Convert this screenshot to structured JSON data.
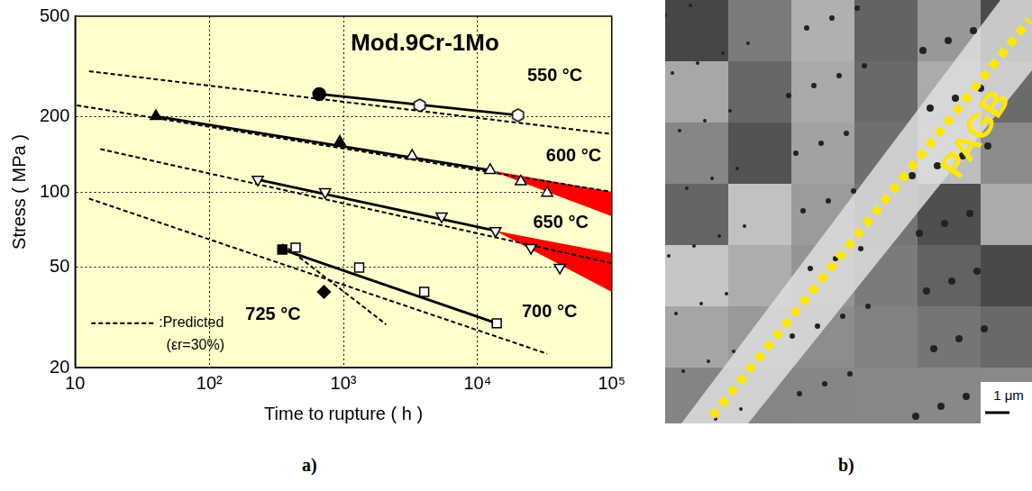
{
  "chart_data": {
    "type": "scatter",
    "title": "Mod.9Cr-1Mo",
    "x_label": "Time to rupture ( h )",
    "y_label": "Stress ( MPa )",
    "log": true,
    "grid": true,
    "legend": "lower left",
    "xlim": [
      10,
      100000
    ],
    "xticks": [
      10,
      {
        "value": 100,
        "label": "10²"
      },
      {
        "value": 1000,
        "label": "10³"
      },
      {
        "value": 10000,
        "label": "10⁴"
      },
      {
        "value": 100000,
        "label": "10⁵"
      }
    ],
    "ylim": [
      20,
      500
    ],
    "yticks": [
      20,
      50,
      100,
      200,
      500
    ],
    "annotations": [
      "550 °C",
      "600 °C",
      "650 °C",
      "700 °C",
      "725 °C"
    ],
    "predicted_label": [
      ":Predicted",
      "(εr=30%)"
    ],
    "series": [
      {
        "type": "line",
        "line_style": "dashed",
        "color": "#000000",
        "x": [
          12.7,
          100000
        ],
        "values": [
          302,
          170
        ]
      },
      {
        "type": "line",
        "line_style": "solid",
        "color": "#000000",
        "x": [
          660,
          20000
        ],
        "values": [
          245,
          202
        ]
      },
      {
        "type": "scatter",
        "marker": "filled_circle",
        "color": "#000000",
        "x": [
          660
        ],
        "values": [
          245
        ]
      },
      {
        "type": "scatter",
        "marker": "open_hexagon",
        "color": "#000000",
        "x": [
          3700,
          20000
        ],
        "values": [
          221,
          202
        ]
      },
      {
        "type": "area",
        "color": "#ff0000",
        "x": [
          12400,
          100000,
          100000
        ],
        "values": [
          122,
          100,
          80
        ]
      },
      {
        "type": "line",
        "line_style": "dashed",
        "color": "#000000",
        "x": [
          10.3,
          100000
        ],
        "values": [
          221,
          100
        ]
      },
      {
        "type": "line",
        "line_style": "solid",
        "color": "#000000",
        "x": [
          40,
          12400
        ],
        "values": [
          200,
          122
        ]
      },
      {
        "type": "scatter",
        "marker": "filled_triangle",
        "color": "#000000",
        "x": [
          40,
          940
        ],
        "values": [
          200,
          158
        ]
      },
      {
        "type": "scatter",
        "marker": "open_triangle",
        "color": "#000000",
        "x": [
          3250,
          12400,
          21000,
          33000
        ],
        "values": [
          139,
          122,
          110,
          99
        ]
      },
      {
        "type": "area",
        "color": "#ff0000",
        "x": [
          13600,
          100000,
          100000
        ],
        "values": [
          70,
          57,
          40
        ]
      },
      {
        "type": "line",
        "line_style": "dashed",
        "color": "#000000",
        "x": [
          15.4,
          100000
        ],
        "values": [
          148,
          52
        ]
      },
      {
        "type": "line",
        "line_style": "solid",
        "color": "#000000",
        "x": [
          230,
          13600
        ],
        "values": [
          112,
          70
        ]
      },
      {
        "type": "scatter",
        "marker": "open_inverted_triangle",
        "color": "#000000",
        "x": [
          230,
          730,
          5400,
          13600,
          25000,
          41000
        ],
        "values": [
          112,
          100,
          80,
          70,
          60,
          50
        ]
      },
      {
        "type": "line",
        "line_style": "dashed",
        "color": "#000000",
        "x": [
          12.7,
          33000
        ],
        "values": [
          94,
          22.7
        ]
      },
      {
        "type": "line",
        "line_style": "solid",
        "color": "#000000",
        "x": [
          350,
          13900
        ],
        "values": [
          59,
          30
        ]
      },
      {
        "type": "scatter",
        "marker": "filled_square",
        "color": "#000000",
        "x": [
          350
        ],
        "values": [
          59
        ]
      },
      {
        "type": "scatter",
        "marker": "open_square",
        "color": "#000000",
        "x": [
          440,
          1310,
          4000,
          13900
        ],
        "values": [
          60,
          50,
          40,
          30
        ]
      },
      {
        "type": "line",
        "line_style": "dashed",
        "color": "#000000",
        "x": [
          350,
          2080
        ],
        "values": [
          62,
          29.7
        ]
      },
      {
        "type": "scatter",
        "marker": "filled_diamond",
        "color": "#000000",
        "x": [
          716
        ],
        "values": [
          40
        ]
      }
    ]
  },
  "image": {
    "boundary_label": "PAGB",
    "scale_bar": "1 μm"
  },
  "panels": [
    "a)",
    "b)"
  ]
}
